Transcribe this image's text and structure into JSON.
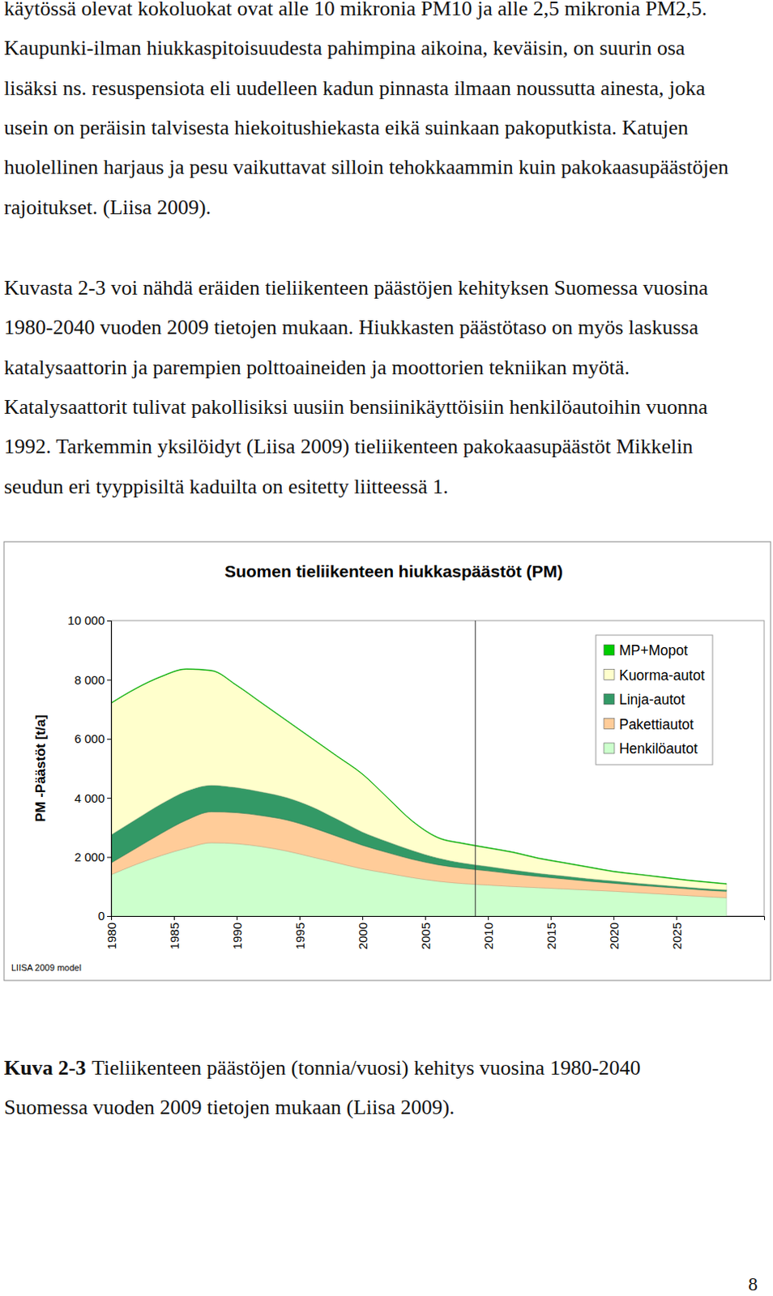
{
  "text": {
    "paragraphs": [
      [
        "käytössä olevat kokoluokat ovat alle 10 mikronia PM10 ja alle 2,5 mikronia PM2,5.",
        "Kaupunki-ilman hiukkaspitoisuudesta pahimpina aikoina, keväisin, on suurin osa",
        "lisäksi ns. resuspensiota eli uudelleen kadun pinnasta ilmaan noussutta ainesta, joka",
        "usein on peräisin talvisesta hiekoitushiekasta eikä suinkaan pakoputkista. Katujen",
        "huolellinen harjaus ja pesu vaikuttavat silloin tehokkaammin kuin pakokaasupäästöjen",
        "rajoitukset. (Liisa 2009)."
      ],
      [
        "Kuvasta 2-3 voi nähdä eräiden tieliikenteen päästöjen kehityksen Suomessa vuosina",
        "1980-2040 vuoden 2009 tietojen mukaan. Hiukkasten päästötaso on myös laskussa",
        "katalysaattorin ja parempien polttoaineiden ja moottorien tekniikan myötä.",
        "Katalysaattorit tulivat pakollisiksi uusiin bensiinikäyttöisiin henkilöautoihin vuonna",
        "1992. Tarkemmin yksilöidyt (Liisa 2009) tieliikenteen pakokaasupäästöt Mikkelin",
        "seudun eri tyyppisiltä kaduilta on esitetty liitteessä 1."
      ]
    ],
    "caption": {
      "label": "Kuva 2-3",
      "lines": [
        "Tieliikenteen päästöjen (tonnia/vuosi) kehitys vuosina 1980-2040",
        "Suomessa vuoden 2009 tietojen mukaan (Liisa 2009)."
      ]
    },
    "page_number": "8"
  },
  "chart_data": {
    "type": "area",
    "stacked": true,
    "title": "Suomen tieliikenteen hiukkaspäästöt (PM)",
    "y_label": "PM -Päästöt [t/a]",
    "annotation": "LIISA 2009 model",
    "grid": false,
    "legend": "upper right",
    "vline": 2009,
    "x": [
      1980,
      1982,
      1984,
      1986,
      1988,
      1990,
      1992,
      1994,
      1996,
      1998,
      2000,
      2002,
      2004,
      2006,
      2008,
      2010,
      2012,
      2014,
      2016,
      2018,
      2020,
      2022,
      2024,
      2026,
      2028,
      2029
    ],
    "xlim": [
      1980,
      2032
    ],
    "xticks": [
      1980,
      1985,
      1990,
      1995,
      2000,
      2005,
      2010,
      2015,
      2020,
      2025
    ],
    "ylim": [
      0,
      10000
    ],
    "yticks": [
      0,
      {
        "value": 2000,
        "label": "2 000"
      },
      {
        "value": 4000,
        "label": "4 000"
      },
      {
        "value": 6000,
        "label": "6 000"
      },
      {
        "value": 8000,
        "label": "8 000"
      },
      {
        "value": 10000,
        "label": "10 000"
      }
    ],
    "series": [
      {
        "name": "MP+Mopot",
        "color": "#00cc00",
        "values": [
          20,
          20,
          20,
          20,
          20,
          20,
          20,
          20,
          20,
          20,
          20,
          20,
          20,
          20,
          20,
          20,
          20,
          20,
          20,
          20,
          20,
          20,
          20,
          20,
          20,
          20
        ]
      },
      {
        "name": "Kuorma-autot",
        "color": "#ffffcc",
        "values": [
          4450,
          4420,
          4300,
          4120,
          3870,
          3450,
          3000,
          2590,
          2300,
          2120,
          1950,
          1480,
          980,
          680,
          650,
          620,
          590,
          500,
          440,
          380,
          310,
          290,
          260,
          225,
          210,
          190
        ]
      },
      {
        "name": "Linja-autot",
        "color": "#339966",
        "values": [
          950,
          980,
          1000,
          980,
          900,
          850,
          800,
          760,
          700,
          580,
          450,
          370,
          300,
          230,
          180,
          150,
          130,
          110,
          100,
          90,
          80,
          70,
          60,
          55,
          50,
          50
        ]
      },
      {
        "name": "Pakettiautot",
        "color": "#ffcc99",
        "values": [
          400,
          550,
          750,
          950,
          1050,
          1050,
          1050,
          1050,
          1000,
          900,
          800,
          700,
          620,
          560,
          520,
          480,
          430,
          380,
          340,
          300,
          270,
          250,
          240,
          230,
          220,
          220
        ]
      },
      {
        "name": "Henkilöautot",
        "color": "#ccffcc",
        "values": [
          1400,
          1750,
          2050,
          2300,
          2480,
          2450,
          2350,
          2200,
          2000,
          1800,
          1600,
          1450,
          1300,
          1180,
          1100,
          1050,
          1000,
          960,
          920,
          880,
          840,
          790,
          740,
          690,
          640,
          620
        ]
      }
    ]
  }
}
